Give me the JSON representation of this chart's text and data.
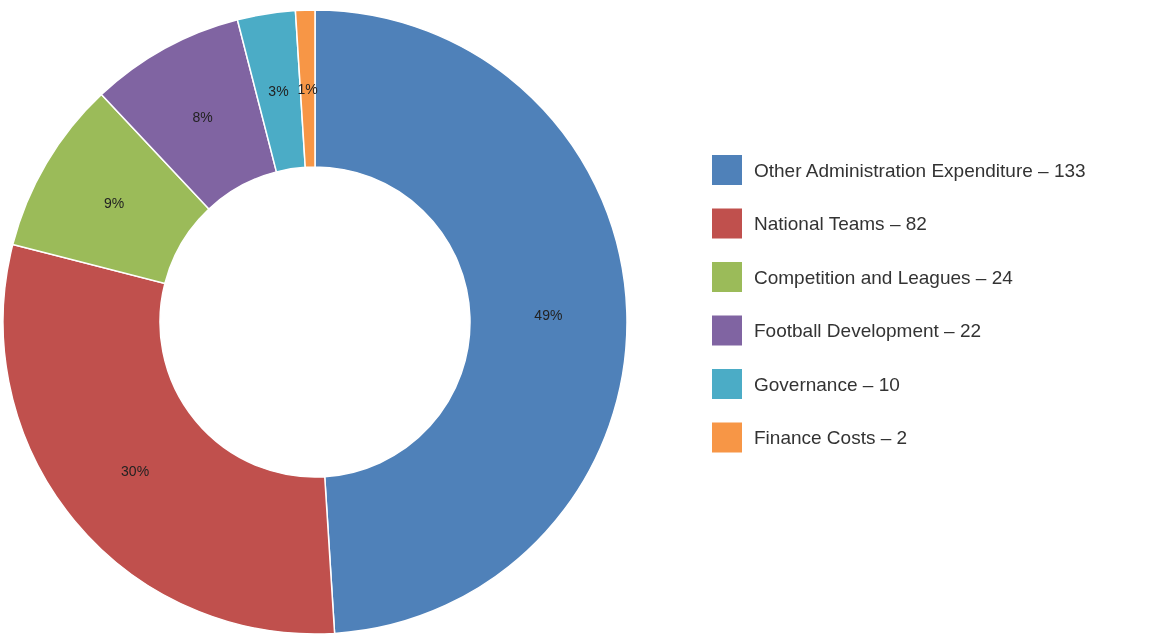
{
  "chart_data": {
    "type": "donut",
    "categories": [
      "Other Administration Expenditure – 133",
      "National Teams – 82",
      "Competition and Leagues – 24",
      "Football Development – 22",
      "Governance – 10",
      "Finance Costs – 2"
    ],
    "values": [
      49,
      30,
      9,
      8,
      3,
      1
    ],
    "colors": [
      "#4f81b9",
      "#c0504d",
      "#9bbb59",
      "#8064a2",
      "#4bacc6",
      "#f79646"
    ],
    "value_labels": [
      "49%",
      "30%",
      "9%",
      "8%",
      "3%",
      "1%"
    ],
    "legend": "right"
  }
}
